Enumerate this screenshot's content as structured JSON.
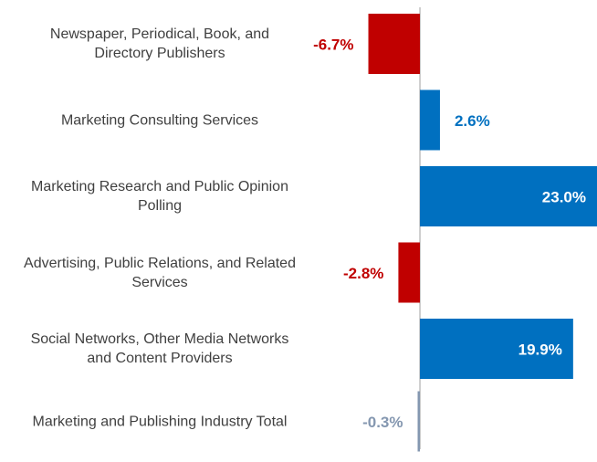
{
  "chart_data": {
    "type": "bar",
    "orientation": "horizontal",
    "categories": [
      "Newspaper, Periodical, Book, and\nDirectory Publishers",
      "Marketing Consulting Services",
      "Marketing Research and Public Opinion\nPolling",
      "Advertising, Public Relations, and Related\nServices",
      "Social Networks, Other Media Networks\nand Content Providers",
      "Marketing and Publishing Industry Total"
    ],
    "values": [
      -6.7,
      2.6,
      23.0,
      -2.8,
      19.9,
      -0.3
    ],
    "value_labels": [
      "-6.7%",
      "2.6%",
      "23.0%",
      "-2.8%",
      "19.9%",
      "-0.3%"
    ],
    "colors": [
      "#c00000",
      "#0070c0",
      "#0070c0",
      "#c00000",
      "#0070c0",
      "#8497b0"
    ],
    "xlim": [
      -7,
      23
    ]
  }
}
